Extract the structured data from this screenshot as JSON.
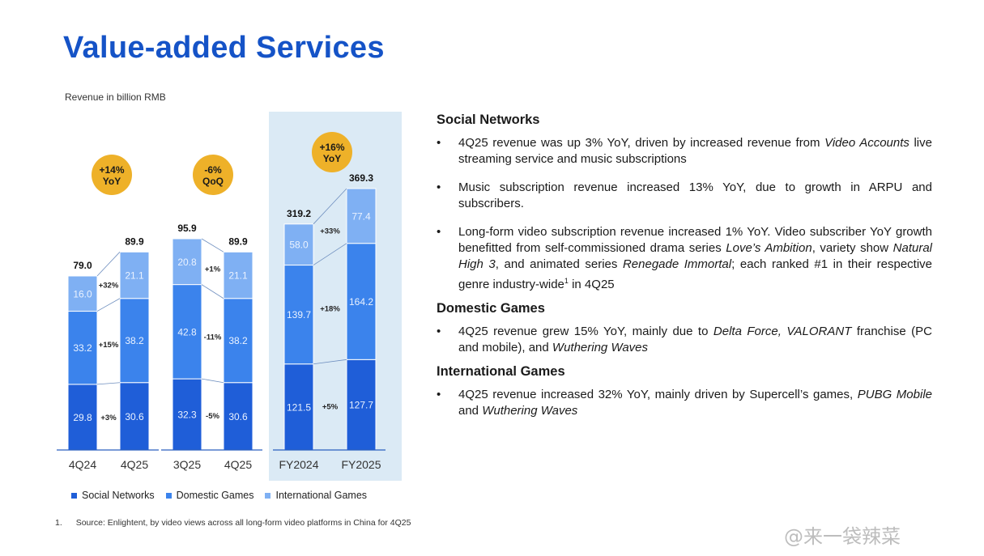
{
  "slide": {
    "title": "Value-added Services",
    "subtitle": "Revenue in billion RMB",
    "footnote_num": "1.",
    "footnote_text": "Source: Enlightent, by video views across all long-form video platforms in China for 4Q25",
    "watermark": "@来一袋辣菜"
  },
  "chart_data": {
    "type": "bar",
    "stacked": true,
    "title": "",
    "ylabel": "Revenue in billion RMB",
    "categories": [
      "4Q24",
      "4Q25",
      "3Q25",
      "4Q25",
      "FY2024",
      "FY2025"
    ],
    "series": [
      {
        "name": "Social Networks",
        "color": "#1f5ed8",
        "values": [
          29.8,
          30.6,
          32.3,
          30.6,
          121.5,
          127.7
        ]
      },
      {
        "name": "Domestic Games",
        "color": "#3b83ec",
        "values": [
          33.2,
          38.2,
          42.8,
          38.2,
          139.7,
          164.2
        ]
      },
      {
        "name": "International Games",
        "color": "#7fb0f3",
        "values": [
          16.0,
          21.1,
          20.8,
          21.1,
          58.0,
          77.4
        ]
      }
    ],
    "totals": [
      "79.0",
      "89.9",
      "95.9",
      "89.9",
      "319.2",
      "369.3"
    ],
    "segment_labels": [
      [
        "29.8",
        "33.2",
        "16.0"
      ],
      [
        "30.6",
        "38.2",
        "21.1"
      ],
      [
        "32.3",
        "42.8",
        "20.8"
      ],
      [
        "30.6",
        "38.2",
        "21.1"
      ],
      [
        "121.5",
        "139.7",
        "58.0"
      ],
      [
        "127.7",
        "164.2",
        "77.4"
      ]
    ],
    "groups": [
      {
        "bars": [
          0,
          1
        ],
        "badge": [
          "+14%",
          "YoY"
        ],
        "changes": [
          "+3%",
          "+15%",
          "+32%"
        ]
      },
      {
        "bars": [
          2,
          3
        ],
        "badge": [
          "-6%",
          "QoQ"
        ],
        "changes": [
          "-5%",
          "-11%",
          "+1%"
        ]
      },
      {
        "bars": [
          4,
          5
        ],
        "badge": [
          "+16%",
          "YoY"
        ],
        "changes": [
          "+5%",
          "+18%",
          "+33%"
        ],
        "highlighted": true
      }
    ]
  },
  "right": {
    "sections": [
      {
        "heading": "Social Networks",
        "bullets": [
          [
            {
              "t": "4Q25 revenue was up 3% YoY, driven by increased revenue from "
            },
            {
              "t": "Video Accounts",
              "i": true
            },
            {
              "t": " live streaming service and music subscriptions"
            }
          ],
          [
            {
              "t": "Music subscription revenue increased 13% YoY, due to growth in ARPU and subscribers."
            }
          ],
          [
            {
              "t": "Long-form video subscription revenue increased 1% YoY. Video subscriber YoY growth benefitted from self-commissioned drama series "
            },
            {
              "t": "Love’s Ambition",
              "i": true
            },
            {
              "t": ", variety show "
            },
            {
              "t": "Natural High 3",
              "i": true
            },
            {
              "t": ", and animated series "
            },
            {
              "t": "Renegade Immortal",
              "i": true
            },
            {
              "t": "; each ranked #1 in their respective genre industry-wide"
            },
            {
              "t": "1",
              "sup": true
            },
            {
              "t": " in 4Q25"
            }
          ]
        ]
      },
      {
        "heading": "Domestic Games",
        "bullets": [
          [
            {
              "t": "4Q25 revenue grew 15% YoY, mainly due to "
            },
            {
              "t": "Delta Force, VALORANT",
              "i": true
            },
            {
              "t": " franchise (PC and mobile), and "
            },
            {
              "t": "Wuthering Waves",
              "i": true
            }
          ]
        ]
      },
      {
        "heading": "International Games",
        "bullets": [
          [
            {
              "t": "4Q25 revenue increased 32% YoY, mainly driven by Supercell’s games, "
            },
            {
              "t": "PUBG Mobile",
              "i": true
            },
            {
              "t": " and "
            },
            {
              "t": "Wuthering Waves",
              "i": true
            }
          ]
        ]
      }
    ]
  }
}
